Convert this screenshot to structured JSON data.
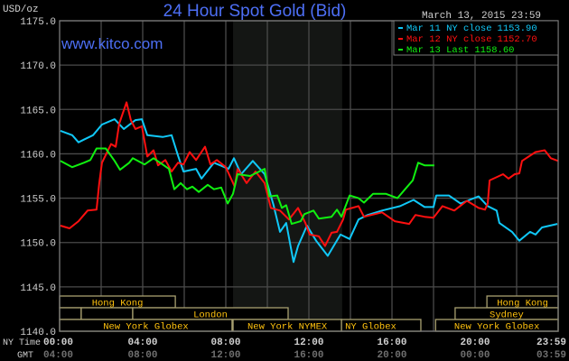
{
  "chart_data": {
    "type": "line",
    "title": "24 Hour Spot Gold (Bid)",
    "ylabel": "USD/oz",
    "watermark": "www.kitco.com",
    "timestamp": "March 13, 2015 23:59",
    "ylim": [
      1140,
      1175
    ],
    "yticks": [
      "1140.0",
      "1145.0",
      "1150.0",
      "1155.0",
      "1160.0",
      "1165.0",
      "1170.0",
      "1175.0"
    ],
    "ytick_values": [
      1140,
      1145,
      1150,
      1155,
      1160,
      1165,
      1170,
      1175
    ],
    "xlim": [
      0,
      24
    ],
    "grid": true,
    "legend_placement": "top-right",
    "x_axis_rows": [
      {
        "label": "NY Time",
        "color": "#d0d0d0",
        "ticks": [
          "00:00",
          "04:00",
          "08:00",
          "12:00",
          "16:00",
          "20:00",
          "23:59"
        ]
      },
      {
        "label": "GMT",
        "color": "#707070",
        "ticks": [
          "04:00",
          "08:00",
          "12:00",
          "16:00",
          "20:00",
          "00:00",
          "03:59"
        ]
      }
    ],
    "xtick_hours": [
      0,
      4,
      8,
      12,
      16,
      20,
      24
    ],
    "shaded_hours": [
      8.35,
      13.6
    ],
    "colors": {
      "background": "#000000",
      "grid": "#4a4a4a",
      "frame": "#7a7a7a",
      "shade": "#141614",
      "title": "#4d6ff5",
      "session_box": "#a8a070",
      "session_text": "#ffc20e"
    },
    "series": [
      {
        "name": "Mar 11 NY close",
        "value": "1153.90",
        "color": "#10c8f8",
        "points": [
          [
            0.04,
            1162.6
          ],
          [
            0.61,
            1162.1
          ],
          [
            0.91,
            1161.3
          ],
          [
            1.17,
            1161.6
          ],
          [
            1.61,
            1162.1
          ],
          [
            2.04,
            1163.3
          ],
          [
            2.65,
            1163.9
          ],
          [
            3.09,
            1162.8
          ],
          [
            3.65,
            1163.8
          ],
          [
            3.96,
            1163.9
          ],
          [
            4.22,
            1162.1
          ],
          [
            4.96,
            1161.9
          ],
          [
            5.39,
            1162.1
          ],
          [
            5.7,
            1159.8
          ],
          [
            5.96,
            1158.0
          ],
          [
            6.57,
            1158.3
          ],
          [
            6.83,
            1157.2
          ],
          [
            7.43,
            1159.0
          ],
          [
            8.13,
            1158.3
          ],
          [
            8.39,
            1159.5
          ],
          [
            8.74,
            1157.7
          ],
          [
            9.3,
            1159.2
          ],
          [
            9.87,
            1157.7
          ],
          [
            10.3,
            1154.2
          ],
          [
            10.61,
            1151.2
          ],
          [
            10.91,
            1152.2
          ],
          [
            11.26,
            1147.8
          ],
          [
            11.48,
            1149.6
          ],
          [
            11.91,
            1151.9
          ],
          [
            12.35,
            1150.2
          ],
          [
            12.91,
            1148.5
          ],
          [
            13.52,
            1150.9
          ],
          [
            13.96,
            1150.4
          ],
          [
            14.39,
            1152.6
          ],
          [
            14.83,
            1153.1
          ],
          [
            15.52,
            1153.6
          ],
          [
            16.39,
            1154.1
          ],
          [
            17.04,
            1154.8
          ],
          [
            17.57,
            1154.0
          ],
          [
            18.0,
            1154.0
          ],
          [
            18.13,
            1155.3
          ],
          [
            18.74,
            1155.3
          ],
          [
            19.3,
            1154.4
          ],
          [
            19.74,
            1154.8
          ],
          [
            20.17,
            1155.2
          ],
          [
            20.61,
            1154.1
          ],
          [
            21.04,
            1153.6
          ],
          [
            21.17,
            1152.2
          ],
          [
            21.78,
            1151.2
          ],
          [
            22.13,
            1150.2
          ],
          [
            22.65,
            1151.2
          ],
          [
            22.91,
            1150.9
          ],
          [
            23.22,
            1151.7
          ],
          [
            23.96,
            1152.1
          ]
        ]
      },
      {
        "name": "Mar 12 NY close",
        "value": "1152.70",
        "color": "#ff1010",
        "points": [
          [
            0.04,
            1151.9
          ],
          [
            0.48,
            1151.6
          ],
          [
            0.91,
            1152.4
          ],
          [
            1.35,
            1153.6
          ],
          [
            1.78,
            1153.7
          ],
          [
            1.91,
            1156.7
          ],
          [
            2.04,
            1159.0
          ],
          [
            2.48,
            1161.1
          ],
          [
            2.7,
            1160.8
          ],
          [
            2.87,
            1163.4
          ],
          [
            3.22,
            1165.8
          ],
          [
            3.43,
            1163.8
          ],
          [
            3.65,
            1162.8
          ],
          [
            3.96,
            1163.1
          ],
          [
            4.22,
            1159.7
          ],
          [
            4.52,
            1160.4
          ],
          [
            4.74,
            1158.7
          ],
          [
            5.09,
            1159.3
          ],
          [
            5.39,
            1158.0
          ],
          [
            5.7,
            1159.0
          ],
          [
            5.96,
            1158.8
          ],
          [
            6.26,
            1160.2
          ],
          [
            6.57,
            1159.3
          ],
          [
            7.0,
            1160.8
          ],
          [
            7.26,
            1158.8
          ],
          [
            7.57,
            1159.3
          ],
          [
            8.0,
            1158.5
          ],
          [
            8.43,
            1156.3
          ],
          [
            8.57,
            1158.3
          ],
          [
            9.0,
            1156.7
          ],
          [
            9.43,
            1158.0
          ],
          [
            9.87,
            1156.7
          ],
          [
            10.17,
            1153.9
          ],
          [
            10.61,
            1153.6
          ],
          [
            11.04,
            1152.6
          ],
          [
            11.48,
            1153.9
          ],
          [
            11.83,
            1152.2
          ],
          [
            12.04,
            1150.9
          ],
          [
            12.48,
            1150.7
          ],
          [
            12.78,
            1149.6
          ],
          [
            13.09,
            1151.1
          ],
          [
            13.35,
            1151.2
          ],
          [
            13.65,
            1152.6
          ],
          [
            13.78,
            1153.7
          ],
          [
            14.39,
            1154.1
          ],
          [
            14.65,
            1152.9
          ],
          [
            15.52,
            1153.4
          ],
          [
            16.13,
            1152.4
          ],
          [
            16.83,
            1152.1
          ],
          [
            17.13,
            1153.1
          ],
          [
            17.57,
            1152.9
          ],
          [
            18.0,
            1152.8
          ],
          [
            18.43,
            1154.1
          ],
          [
            19.0,
            1153.6
          ],
          [
            19.61,
            1154.7
          ],
          [
            20.17,
            1153.9
          ],
          [
            20.48,
            1153.7
          ],
          [
            20.61,
            1154.4
          ],
          [
            20.7,
            1157.0
          ],
          [
            21.35,
            1157.7
          ],
          [
            21.61,
            1157.2
          ],
          [
            21.91,
            1157.7
          ],
          [
            22.13,
            1157.8
          ],
          [
            22.26,
            1159.2
          ],
          [
            22.91,
            1160.2
          ],
          [
            23.35,
            1160.4
          ],
          [
            23.65,
            1159.5
          ],
          [
            24.0,
            1159.2
          ]
        ]
      },
      {
        "name": "Mar 13 Last",
        "value": "1158.60",
        "color": "#10f010",
        "points": [
          [
            0.04,
            1159.2
          ],
          [
            0.61,
            1158.5
          ],
          [
            1.17,
            1159.0
          ],
          [
            1.48,
            1159.3
          ],
          [
            1.78,
            1160.6
          ],
          [
            2.22,
            1160.6
          ],
          [
            2.65,
            1159.2
          ],
          [
            2.91,
            1158.2
          ],
          [
            3.35,
            1159.0
          ],
          [
            3.52,
            1159.5
          ],
          [
            4.09,
            1158.8
          ],
          [
            4.52,
            1159.5
          ],
          [
            5.26,
            1158.3
          ],
          [
            5.52,
            1156.0
          ],
          [
            5.83,
            1156.7
          ],
          [
            6.13,
            1156.0
          ],
          [
            6.39,
            1156.3
          ],
          [
            6.7,
            1155.7
          ],
          [
            7.13,
            1156.5
          ],
          [
            7.43,
            1156.0
          ],
          [
            7.78,
            1156.2
          ],
          [
            8.09,
            1154.4
          ],
          [
            8.35,
            1155.5
          ],
          [
            8.57,
            1157.7
          ],
          [
            9.17,
            1157.5
          ],
          [
            9.87,
            1158.3
          ],
          [
            10.09,
            1155.2
          ],
          [
            10.48,
            1155.3
          ],
          [
            10.7,
            1153.9
          ],
          [
            10.91,
            1154.2
          ],
          [
            11.17,
            1152.1
          ],
          [
            11.61,
            1152.4
          ],
          [
            11.78,
            1153.2
          ],
          [
            12.22,
            1153.6
          ],
          [
            12.48,
            1152.7
          ],
          [
            13.09,
            1152.9
          ],
          [
            13.35,
            1153.7
          ],
          [
            13.57,
            1152.9
          ],
          [
            13.96,
            1155.3
          ],
          [
            14.39,
            1155.0
          ],
          [
            14.65,
            1154.5
          ],
          [
            15.09,
            1155.5
          ],
          [
            15.7,
            1155.5
          ],
          [
            16.26,
            1155.0
          ],
          [
            16.7,
            1156.2
          ],
          [
            17.0,
            1157.0
          ],
          [
            17.26,
            1159.0
          ],
          [
            17.57,
            1158.7
          ],
          [
            18.04,
            1158.7
          ]
        ]
      }
    ],
    "sessions": [
      {
        "row": 0,
        "label": "Hong Kong",
        "start": 0,
        "end": 5.57
      },
      {
        "row": 0,
        "label": "Hong Kong",
        "start": 20.57,
        "end": 24
      },
      {
        "row": 1,
        "label": "",
        "start": 0,
        "end": 1.04
      },
      {
        "row": 1,
        "label": "",
        "start": 1.04,
        "end": 3.52
      },
      {
        "row": 1,
        "label": "London",
        "start": 3.52,
        "end": 11.0
      },
      {
        "row": 1,
        "label": "Sydney",
        "start": 19.04,
        "end": 24
      },
      {
        "row": 2,
        "label": "New York Globex",
        "start": 0,
        "end": 8.3
      },
      {
        "row": 2,
        "label": "New York NYMEX",
        "start": 8.35,
        "end": 13.57
      },
      {
        "row": 2,
        "label": "NY Globex",
        "start": 13.57,
        "end": 17.39
      },
      {
        "row": 2,
        "label": "New York Globex",
        "start": 18.1,
        "end": 24
      }
    ]
  }
}
